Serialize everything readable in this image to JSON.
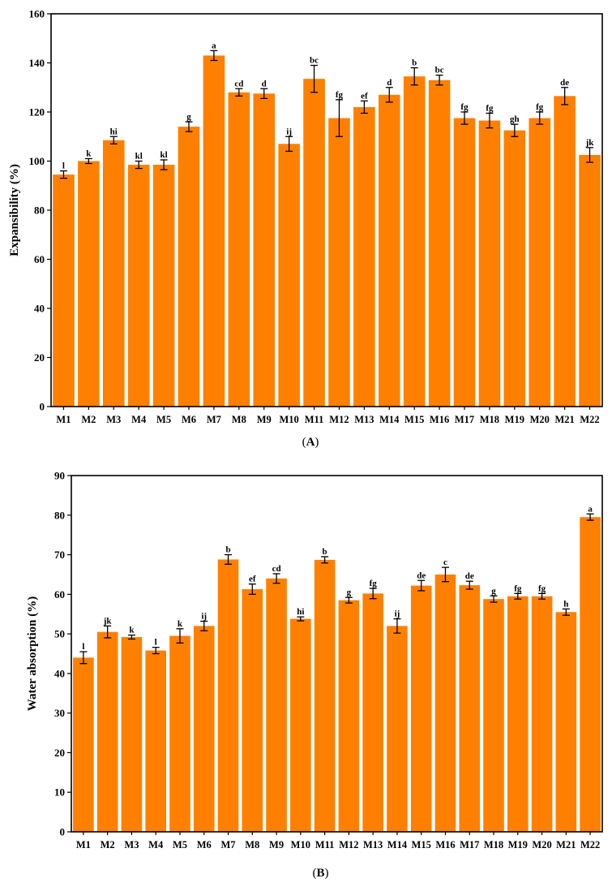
{
  "chart_data": [
    {
      "type": "bar",
      "panel_label": "A",
      "title": "",
      "xlabel": "",
      "ylabel": "Expansibility (%)",
      "ylim": [
        0,
        160
      ],
      "yticks": [
        0,
        20,
        40,
        60,
        80,
        100,
        120,
        140,
        160
      ],
      "bar_color": "#FF8000",
      "categories": [
        "M1",
        "M2",
        "M3",
        "M4",
        "M5",
        "M6",
        "M7",
        "M8",
        "M9",
        "M10",
        "M11",
        "M12",
        "M13",
        "M14",
        "M15",
        "M16",
        "M17",
        "M18",
        "M19",
        "M20",
        "M21",
        "M22"
      ],
      "values": [
        94.5,
        100,
        108.5,
        98.5,
        98.5,
        114,
        143,
        128,
        127.5,
        107,
        133.5,
        117.5,
        122,
        127,
        134.5,
        133,
        117.5,
        116.5,
        112.5,
        117.5,
        126.5,
        102.5
      ],
      "errors": [
        1.5,
        1,
        1.5,
        1.5,
        2,
        2,
        2,
        1.5,
        2,
        3,
        5.5,
        7.5,
        2.5,
        3,
        3.5,
        2,
        2.5,
        3,
        2.5,
        2.5,
        3.5,
        3
      ],
      "significance": [
        "l",
        "k",
        "hi",
        "kl",
        "kl",
        "g",
        "a",
        "cd",
        "d",
        "ij",
        "bc",
        "fg",
        "ef",
        "d",
        "b",
        "bc",
        "fg",
        "fg",
        "gh",
        "fg",
        "de",
        "jk"
      ]
    },
    {
      "type": "bar",
      "panel_label": "B",
      "title": "",
      "xlabel": "",
      "ylabel": "Water absorption (%)",
      "ylim": [
        0,
        90
      ],
      "yticks": [
        0,
        10,
        20,
        30,
        40,
        50,
        60,
        70,
        80,
        90
      ],
      "bar_color": "#FF8000",
      "categories": [
        "M1",
        "M2",
        "M3",
        "M4",
        "M5",
        "M6",
        "M7",
        "M8",
        "M9",
        "M10",
        "M11",
        "M12",
        "M13",
        "M14",
        "M15",
        "M16",
        "M17",
        "M18",
        "M19",
        "M20",
        "M21",
        "M22"
      ],
      "values": [
        44,
        50.5,
        49.2,
        45.8,
        49.5,
        52,
        68.8,
        61.3,
        64,
        53.8,
        68.7,
        58.5,
        60.2,
        52,
        62.2,
        65,
        62.3,
        58.8,
        59.5,
        59.5,
        55.5,
        79.5
      ],
      "errors": [
        1.5,
        1.5,
        0.5,
        0.8,
        1.8,
        1.2,
        1.2,
        1.3,
        1.2,
        0.5,
        0.8,
        0.7,
        1.3,
        1.8,
        1.3,
        1.8,
        1,
        0.8,
        0.7,
        0.7,
        0.8,
        0.8
      ],
      "significance": [
        "l",
        "jk",
        "k",
        "l",
        "k",
        "ij",
        "b",
        "ef",
        "cd",
        "hi",
        "b",
        "g",
        "fg",
        "ij",
        "de",
        "c",
        "de",
        "g",
        "fg",
        "fg",
        "h",
        "a"
      ]
    }
  ]
}
